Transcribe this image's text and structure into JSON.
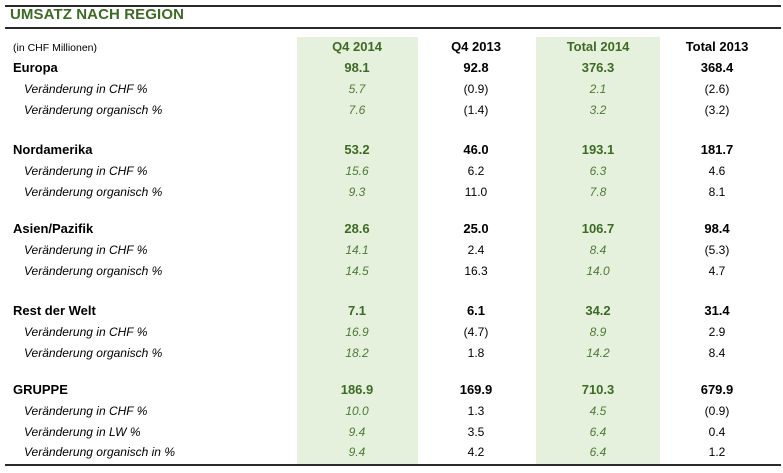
{
  "title": "UMSATZ NACH REGION",
  "unit_note": "(in CHF Millionen)",
  "columns": [
    "Q4 2014",
    "Q4 2013",
    "Total 2014",
    "Total 2013"
  ],
  "colors": {
    "accent_green": "#3d6a24",
    "shade": "#e6f1dd"
  },
  "regions": [
    {
      "name": "Europa",
      "values": [
        "98.1",
        "92.8",
        "376.3",
        "368.4"
      ],
      "subrows": [
        {
          "label": "Veränderung in CHF %",
          "values": [
            "5.7",
            "(0.9)",
            "2.1",
            "(2.6)"
          ]
        },
        {
          "label": "Veränderung organisch %",
          "values": [
            "7.6",
            "(1.4)",
            "3.2",
            "(3.2)"
          ]
        }
      ]
    },
    {
      "name": "Nordamerika",
      "values": [
        "53.2",
        "46.0",
        "193.1",
        "181.7"
      ],
      "subrows": [
        {
          "label": "Veränderung in CHF %",
          "values": [
            "15.6",
            "6.2",
            "6.3",
            "4.6"
          ]
        },
        {
          "label": "Veränderung organisch %",
          "values": [
            "9.3",
            "11.0",
            "7.8",
            "8.1"
          ]
        }
      ]
    },
    {
      "name": "Asien/Pazifik",
      "values": [
        "28.6",
        "25.0",
        "106.7",
        "98.4"
      ],
      "subrows": [
        {
          "label": "Veränderung in CHF %",
          "values": [
            "14.1",
            "2.4",
            "8.4",
            "(5.3)"
          ]
        },
        {
          "label": "Veränderung organisch %",
          "values": [
            "14.5",
            "16.3",
            "14.0",
            "4.7"
          ]
        }
      ]
    },
    {
      "name": "Rest der Welt",
      "values": [
        "7.1",
        "6.1",
        "34.2",
        "31.4"
      ],
      "subrows": [
        {
          "label": "Veränderung in CHF %",
          "values": [
            "16.9",
            "(4.7)",
            "8.9",
            "2.9"
          ]
        },
        {
          "label": "Veränderung organisch %",
          "values": [
            "18.2",
            "1.8",
            "14.2",
            "8.4"
          ]
        }
      ]
    },
    {
      "name": "GRUPPE",
      "values": [
        "186.9",
        "169.9",
        "710.3",
        "679.9"
      ],
      "subrows": [
        {
          "label": "Veränderung in CHF %",
          "values": [
            "10.0",
            "1.3",
            "4.5",
            "(0.9)"
          ]
        },
        {
          "label": "Veränderung in LW %",
          "values": [
            "9.4",
            "3.5",
            "6.4",
            "0.4"
          ]
        },
        {
          "label": "Veränderung organisch in %",
          "values": [
            "9.4",
            "4.2",
            "6.4",
            "1.2"
          ]
        }
      ]
    }
  ]
}
